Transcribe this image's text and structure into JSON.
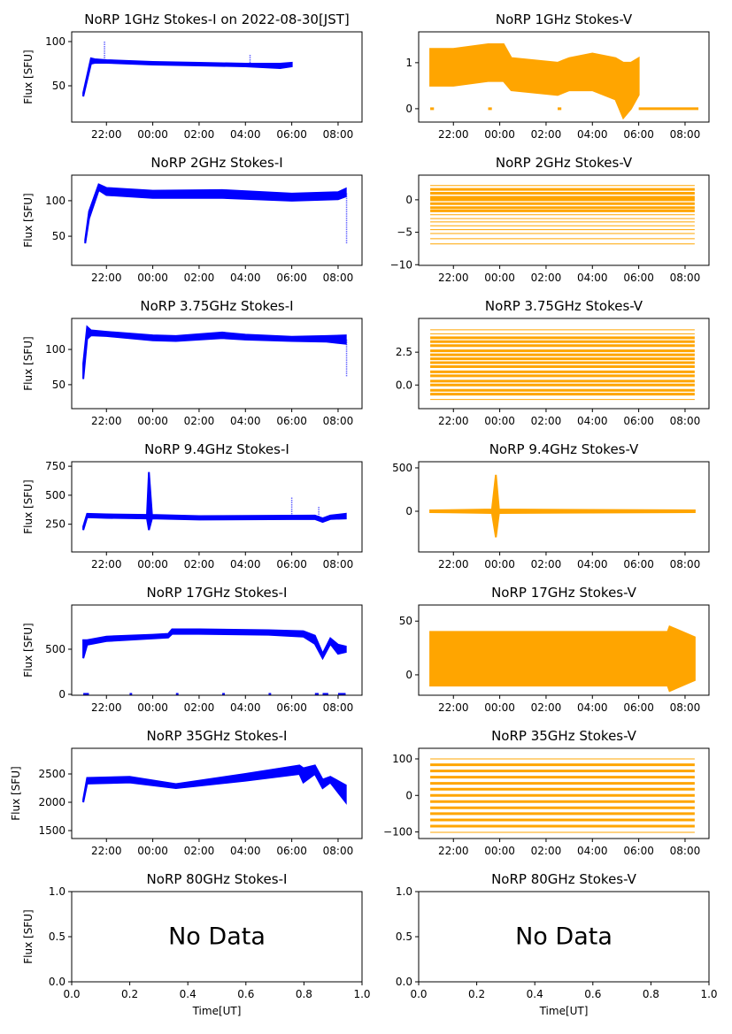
{
  "chart_data": [
    {
      "type": "scatter",
      "title": "NoRP 1GHz Stokes-I on 2022-08-30[JST]",
      "ylabel": "Flux [SFU]",
      "xlabel": "",
      "color": "#0000ff",
      "xlim": [
        "20:30",
        "09:02"
      ],
      "ylim": [
        9,
        111
      ],
      "x_ticks": [
        "22:00",
        "00:00",
        "02:00",
        "04:00",
        "06:00",
        "08:00"
      ],
      "y_ticks": [
        {
          "v": 50,
          "label": "50"
        },
        {
          "v": 100,
          "label": "100"
        }
      ],
      "band": [
        [
          "21:00",
          38,
          42
        ],
        [
          "21:20",
          75,
          81
        ],
        [
          "21:30",
          76,
          80
        ],
        [
          "22:00",
          76,
          79
        ],
        [
          "00:00",
          74,
          77
        ],
        [
          "02:00",
          73,
          76
        ],
        [
          "04:00",
          72,
          75
        ],
        [
          "05:30",
          70,
          75
        ],
        [
          "06:00",
          72,
          76
        ]
      ],
      "spikes": [
        [
          "21:55",
          100
        ],
        [
          "04:12",
          85
        ]
      ]
    },
    {
      "type": "scatter",
      "title": "NoRP 1GHz Stokes-V",
      "ylabel": "",
      "xlabel": "",
      "color": "#ffa500",
      "xlim": [
        "20:30",
        "09:02"
      ],
      "ylim": [
        -0.29,
        1.67
      ],
      "x_ticks": [
        "22:00",
        "00:00",
        "02:00",
        "04:00",
        "06:00",
        "08:00"
      ],
      "y_ticks": [
        {
          "v": 0,
          "label": "0"
        },
        {
          "v": 1,
          "label": "1"
        }
      ],
      "band": [
        [
          "21:00",
          0.5,
          1.3
        ],
        [
          "22:00",
          0.5,
          1.3
        ],
        [
          "23:30",
          0.6,
          1.4
        ],
        [
          "00:10",
          0.6,
          1.4
        ],
        [
          "00:30",
          0.4,
          1.1
        ],
        [
          "02:30",
          0.3,
          1.0
        ],
        [
          "03:00",
          0.4,
          1.1
        ],
        [
          "04:00",
          0.4,
          1.2
        ],
        [
          "05:00",
          0.2,
          1.1
        ],
        [
          "05:20",
          -0.2,
          1.0
        ],
        [
          "05:40",
          0.0,
          1.0
        ],
        [
          "06:00",
          0.3,
          1.1
        ]
      ],
      "zero_segments": [
        [
          "21:00",
          "21:05"
        ],
        [
          "23:30",
          "23:35"
        ],
        [
          "02:30",
          "02:35"
        ],
        [
          "06:00",
          "08:30"
        ]
      ]
    },
    {
      "type": "scatter",
      "title": "NoRP 2GHz Stokes-I",
      "ylabel": "Flux [SFU]",
      "xlabel": "",
      "color": "#0000ff",
      "xlim": [
        "20:30",
        "09:02"
      ],
      "ylim": [
        9,
        136
      ],
      "x_ticks": [
        "22:00",
        "00:00",
        "02:00",
        "04:00",
        "06:00",
        "08:00"
      ],
      "y_ticks": [
        {
          "v": 50,
          "label": "50"
        },
        {
          "v": 100,
          "label": "100"
        }
      ],
      "band": [
        [
          "21:05",
          40,
          45
        ],
        [
          "21:15",
          75,
          85
        ],
        [
          "21:40",
          115,
          123
        ],
        [
          "22:00",
          108,
          118
        ],
        [
          "00:00",
          104,
          114
        ],
        [
          "03:00",
          104,
          115
        ],
        [
          "06:00",
          100,
          110
        ],
        [
          "08:00",
          102,
          112
        ],
        [
          "08:20",
          106,
          117
        ]
      ],
      "spikes": [
        [
          "08:22",
          40
        ]
      ]
    },
    {
      "type": "scatter",
      "title": "NoRP 2GHz Stokes-V",
      "ylabel": "",
      "xlabel": "",
      "color": "#ffa500",
      "xlim": [
        "20:30",
        "09:02"
      ],
      "ylim": [
        -10.1,
        3.8
      ],
      "x_ticks": [
        "22:00",
        "00:00",
        "02:00",
        "04:00",
        "06:00",
        "08:00"
      ],
      "y_ticks": [
        {
          "v": -10,
          "label": "−10"
        },
        {
          "v": -5,
          "label": "−5"
        },
        {
          "v": 0,
          "label": "0"
        }
      ],
      "levels": [
        2.2,
        1.6,
        1.0,
        0.4,
        0,
        -0.6,
        -1.2,
        -1.7,
        -2.3,
        -2.9,
        -3.4,
        -4.0,
        -4.6,
        -5.2,
        -6.0,
        -6.8
      ],
      "span": [
        "21:00",
        "08:25"
      ]
    },
    {
      "type": "scatter",
      "title": "NoRP 3.75GHz Stokes-I",
      "ylabel": "Flux [SFU]",
      "xlabel": "",
      "color": "#0000ff",
      "xlim": [
        "20:30",
        "09:02"
      ],
      "ylim": [
        16,
        144
      ],
      "x_ticks": [
        "22:00",
        "00:00",
        "02:00",
        "04:00",
        "06:00",
        "08:00"
      ],
      "y_ticks": [
        {
          "v": 50,
          "label": "50"
        },
        {
          "v": 100,
          "label": "100"
        }
      ],
      "band": [
        [
          "21:00",
          58,
          80
        ],
        [
          "21:10",
          115,
          132
        ],
        [
          "21:20",
          120,
          127
        ],
        [
          "22:00",
          119,
          125
        ],
        [
          "00:00",
          113,
          120
        ],
        [
          "01:00",
          112,
          119
        ],
        [
          "03:00",
          116,
          124
        ],
        [
          "04:00",
          114,
          121
        ],
        [
          "06:00",
          112,
          118
        ],
        [
          "07:30",
          111,
          119
        ],
        [
          "08:20",
          108,
          120
        ]
      ],
      "spikes": [
        [
          "08:22",
          62
        ]
      ]
    },
    {
      "type": "scatter",
      "title": "NoRP 3.75GHz Stokes-V",
      "ylabel": "",
      "xlabel": "",
      "color": "#ffa500",
      "xlim": [
        "20:30",
        "09:02"
      ],
      "ylim": [
        -1.8,
        5.07
      ],
      "x_ticks": [
        "22:00",
        "00:00",
        "02:00",
        "04:00",
        "06:00",
        "08:00"
      ],
      "y_ticks": [
        {
          "v": 0,
          "label": "0.0"
        },
        {
          "v": 2.5,
          "label": "2.5"
        }
      ],
      "levels": [
        4.2,
        3.9,
        3.6,
        3.3,
        3.0,
        2.6,
        2.3,
        2.0,
        1.7,
        1.4,
        1.0,
        0.7,
        0.3,
        0,
        -0.4,
        -0.7,
        -1.1
      ],
      "span": [
        "21:00",
        "08:25"
      ]
    },
    {
      "type": "scatter",
      "title": "NoRP 9.4GHz Stokes-I",
      "ylabel": "Flux [SFU]",
      "xlabel": "",
      "color": "#0000ff",
      "xlim": [
        "20:30",
        "09:02"
      ],
      "ylim": [
        11,
        789
      ],
      "x_ticks": [
        "22:00",
        "00:00",
        "02:00",
        "04:00",
        "06:00",
        "08:00"
      ],
      "y_ticks": [
        {
          "v": 250,
          "label": "250"
        },
        {
          "v": 500,
          "label": "500"
        },
        {
          "v": 750,
          "label": "750"
        }
      ],
      "band": [
        [
          "21:00",
          200,
          230
        ],
        [
          "21:10",
          310,
          340
        ],
        [
          "22:00",
          305,
          335
        ],
        [
          "23:45",
          300,
          330
        ],
        [
          "23:50",
          200,
          700
        ],
        [
          "23:58",
          300,
          330
        ],
        [
          "02:00",
          290,
          320
        ],
        [
          "07:00",
          295,
          325
        ],
        [
          "07:20",
          270,
          300
        ],
        [
          "07:40",
          295,
          325
        ],
        [
          "08:20",
          300,
          340
        ]
      ],
      "spikes": [
        [
          "06:00",
          480
        ],
        [
          "07:10",
          400
        ]
      ]
    },
    {
      "type": "scatter",
      "title": "NoRP 9.4GHz Stokes-V",
      "ylabel": "",
      "xlabel": "",
      "color": "#ffa500",
      "xlim": [
        "20:30",
        "09:02"
      ],
      "ylim": [
        -469,
        571
      ],
      "x_ticks": [
        "22:00",
        "00:00",
        "02:00",
        "04:00",
        "06:00",
        "08:00"
      ],
      "y_ticks": [
        {
          "v": 0,
          "label": "0"
        },
        {
          "v": 500,
          "label": "500"
        }
      ],
      "band": [
        [
          "21:00",
          -10,
          10
        ],
        [
          "23:40",
          -20,
          20
        ],
        [
          "23:50",
          -300,
          420
        ],
        [
          "23:58",
          -20,
          20
        ],
        [
          "08:25",
          -10,
          10
        ]
      ]
    },
    {
      "type": "scatter",
      "title": "NoRP 17GHz Stokes-I",
      "ylabel": "Flux [SFU]",
      "xlabel": "",
      "color": "#0000ff",
      "xlim": [
        "20:30",
        "09:02"
      ],
      "ylim": [
        -10,
        990
      ],
      "x_ticks": [
        "22:00",
        "00:00",
        "02:00",
        "04:00",
        "06:00",
        "08:00"
      ],
      "y_ticks": [
        {
          "v": 0,
          "label": "0"
        },
        {
          "v": 500,
          "label": "500"
        }
      ],
      "band": [
        [
          "21:00",
          400,
          600
        ],
        [
          "21:10",
          550,
          600
        ],
        [
          "22:00",
          590,
          640
        ],
        [
          "00:00",
          620,
          660
        ],
        [
          "00:40",
          630,
          670
        ],
        [
          "00:50",
          670,
          720
        ],
        [
          "02:00",
          670,
          720
        ],
        [
          "05:00",
          660,
          710
        ],
        [
          "06:30",
          640,
          700
        ],
        [
          "07:00",
          560,
          650
        ],
        [
          "07:20",
          400,
          450
        ],
        [
          "07:40",
          560,
          620
        ],
        [
          "08:00",
          450,
          550
        ],
        [
          "08:20",
          470,
          530
        ]
      ],
      "zero_segments": [
        [
          "21:00",
          "21:10"
        ],
        [
          "23:00",
          "23:02"
        ],
        [
          "01:00",
          "01:02"
        ],
        [
          "03:00",
          "03:02"
        ],
        [
          "05:00",
          "05:02"
        ],
        [
          "07:00",
          "07:05"
        ],
        [
          "07:20",
          "07:30"
        ],
        [
          "08:00",
          "08:15"
        ]
      ]
    },
    {
      "type": "scatter",
      "title": "NoRP 17GHz Stokes-V",
      "ylabel": "",
      "xlabel": "",
      "color": "#ffa500",
      "xlim": [
        "20:30",
        "09:02"
      ],
      "ylim": [
        -19,
        65
      ],
      "x_ticks": [
        "22:00",
        "00:00",
        "02:00",
        "04:00",
        "06:00",
        "08:00"
      ],
      "y_ticks": [
        {
          "v": 0,
          "label": "0"
        },
        {
          "v": 50,
          "label": "50"
        }
      ],
      "band": [
        [
          "21:00",
          -10,
          40
        ],
        [
          "07:15",
          -10,
          40
        ],
        [
          "07:20",
          -15,
          45
        ],
        [
          "08:25",
          -5,
          35
        ]
      ]
    },
    {
      "type": "scatter",
      "title": "NoRP 35GHz Stokes-I",
      "ylabel": "Flux [SFU]",
      "xlabel": "",
      "color": "#0000ff",
      "xlim": [
        "20:30",
        "09:02"
      ],
      "ylim": [
        1360,
        2953
      ],
      "x_ticks": [
        "22:00",
        "00:00",
        "02:00",
        "04:00",
        "06:00",
        "08:00"
      ],
      "y_ticks": [
        {
          "v": 1500,
          "label": "1500"
        },
        {
          "v": 2000,
          "label": "2000"
        },
        {
          "v": 2500,
          "label": "2500"
        }
      ],
      "band": [
        [
          "21:00",
          2000,
          2050
        ],
        [
          "21:10",
          2330,
          2430
        ],
        [
          "23:00",
          2350,
          2450
        ],
        [
          "01:00",
          2250,
          2320
        ],
        [
          "04:00",
          2380,
          2500
        ],
        [
          "06:20",
          2500,
          2650
        ],
        [
          "06:30",
          2350,
          2600
        ],
        [
          "07:00",
          2500,
          2650
        ],
        [
          "07:20",
          2250,
          2400
        ],
        [
          "07:40",
          2350,
          2450
        ],
        [
          "08:20",
          2000,
          2300
        ]
      ]
    },
    {
      "type": "scatter",
      "title": "NoRP 35GHz Stokes-V",
      "ylabel": "",
      "xlabel": "",
      "color": "#ffa500",
      "xlim": [
        "20:30",
        "09:02"
      ],
      "ylim": [
        -118,
        129
      ],
      "x_ticks": [
        "22:00",
        "00:00",
        "02:00",
        "04:00",
        "06:00",
        "08:00"
      ],
      "y_ticks": [
        {
          "v": -100,
          "label": "−100"
        },
        {
          "v": 0,
          "label": "0"
        },
        {
          "v": 100,
          "label": "100"
        }
      ],
      "levels": [
        100,
        84,
        67,
        50,
        33,
        17,
        0,
        -17,
        -34,
        -50,
        -67,
        -84,
        -101
      ],
      "span": [
        "21:00",
        "08:25"
      ]
    },
    {
      "type": "scatter",
      "title": "NoRP 80GHz Stokes-I",
      "ylabel": "Flux [SFU]",
      "xlabel": "Time[UT]",
      "annotation": "No Data",
      "xlim": [
        0,
        1
      ],
      "ylim": [
        0,
        1
      ],
      "x_ticks": [
        "0.0",
        "0.2",
        "0.4",
        "0.6",
        "0.8",
        "1.0"
      ],
      "y_ticks": [
        {
          "v": 0,
          "label": "0.0"
        },
        {
          "v": 0.5,
          "label": "0.5"
        },
        {
          "v": 1,
          "label": "1.0"
        }
      ]
    },
    {
      "type": "scatter",
      "title": "NoRP 80GHz Stokes-V",
      "ylabel": "",
      "xlabel": "Time[UT]",
      "annotation": "No Data",
      "xlim": [
        0,
        1
      ],
      "ylim": [
        0,
        1
      ],
      "x_ticks": [
        "0.0",
        "0.2",
        "0.4",
        "0.6",
        "0.8",
        "1.0"
      ],
      "y_ticks": [
        {
          "v": 0,
          "label": "0.0"
        },
        {
          "v": 0.5,
          "label": "0.5"
        },
        {
          "v": 1,
          "label": "1.0"
        }
      ]
    }
  ]
}
